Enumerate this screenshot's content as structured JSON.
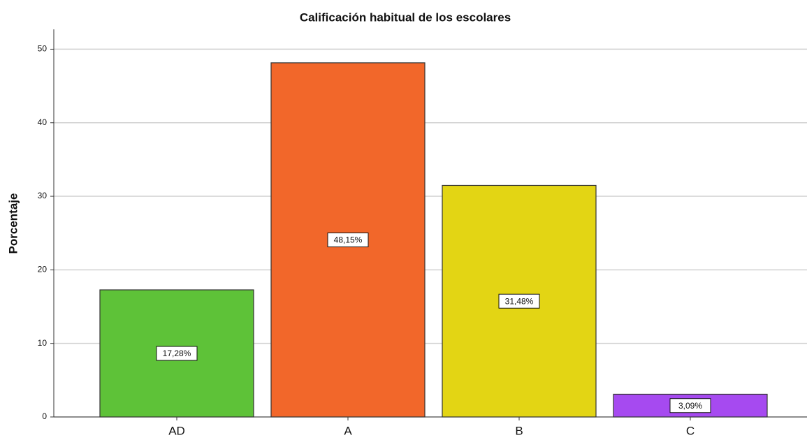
{
  "chart_data": {
    "type": "bar",
    "title": "Calificación habitual de los escolares",
    "y_label": "Porcentaje",
    "categories": [
      "AD",
      "A",
      "B",
      "C"
    ],
    "values": [
      17.28,
      48.15,
      31.48,
      3.09
    ],
    "value_labels": [
      "17,28%",
      "48,15%",
      "31,48%",
      "3,09%"
    ],
    "colors": [
      "#5ec238",
      "#f2672a",
      "#e3d514",
      "#a64af0"
    ],
    "ylim": [
      0,
      52.7
    ],
    "yticks": [
      0,
      10,
      20,
      30,
      40,
      50
    ],
    "grid": true
  }
}
